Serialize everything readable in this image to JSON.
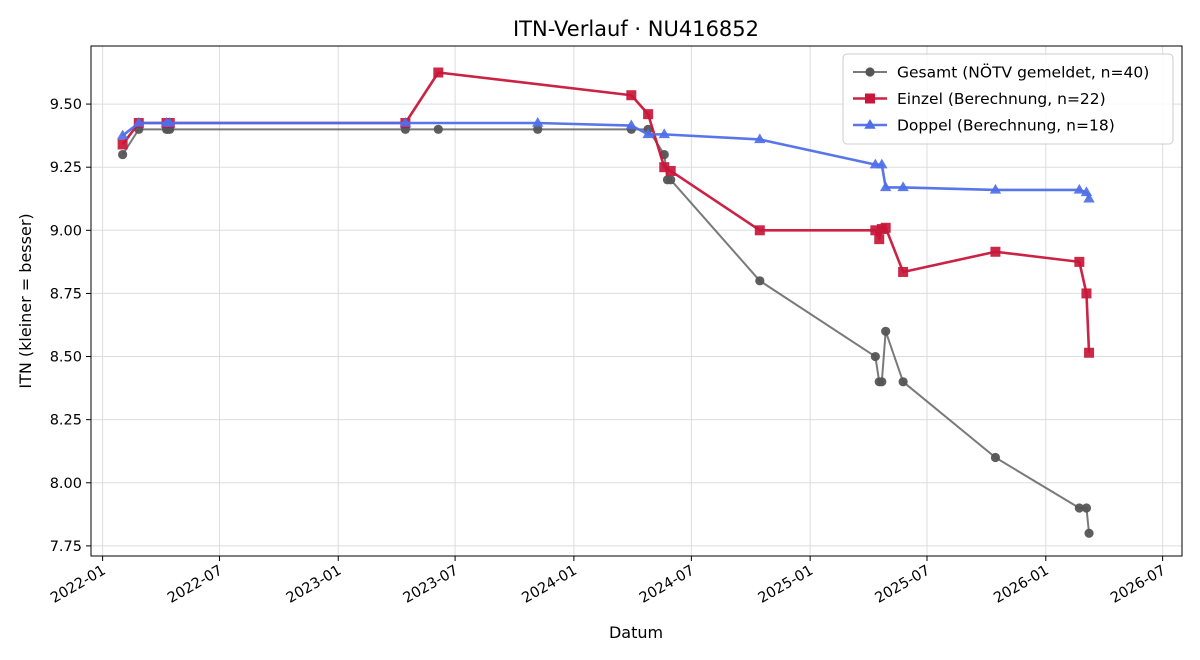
{
  "chart_data": {
    "type": "line",
    "title": "ITN-Verlauf · NU416852",
    "xlabel": "Datum",
    "ylabel": "ITN  (kleiner = besser)",
    "x_is_date": true,
    "xlim": [
      "2021-12-14",
      "2026-07-31"
    ],
    "ylim": [
      7.71,
      9.73
    ],
    "x_ticks": [
      "2022-01-01",
      "2022-07-01",
      "2023-01-01",
      "2023-07-01",
      "2024-01-01",
      "2024-07-01",
      "2025-01-01",
      "2025-07-01",
      "2026-01-01",
      "2026-07-01"
    ],
    "x_tick_labels": [
      "2022-01",
      "2022-07",
      "2023-01",
      "2023-07",
      "2024-01",
      "2024-07",
      "2025-01",
      "2025-07",
      "2026-01",
      "2026-07"
    ],
    "y_ticks": [
      7.75,
      8.0,
      8.25,
      8.5,
      8.75,
      9.0,
      9.25,
      9.5
    ],
    "y_tick_labels": [
      "7.75",
      "8.00",
      "8.25",
      "8.50",
      "8.75",
      "9.00",
      "9.25",
      "9.50"
    ],
    "grid": true,
    "legend_position": "top-right",
    "series": [
      {
        "name": "Gesamt (NÖTV gemeldet, n=40)",
        "color": "#555555",
        "marker": "circle",
        "points": [
          [
            "2022-02-01",
            9.3
          ],
          [
            "2022-02-26",
            9.4
          ],
          [
            "2022-04-10",
            9.4
          ],
          [
            "2022-04-12",
            9.4
          ],
          [
            "2022-04-15",
            9.4
          ],
          [
            "2023-04-15",
            9.4
          ],
          [
            "2023-06-05",
            9.4
          ],
          [
            "2023-11-06",
            9.4
          ],
          [
            "2024-03-30",
            9.4
          ],
          [
            "2024-04-25",
            9.4
          ],
          [
            "2024-05-20",
            9.3
          ],
          [
            "2024-05-25",
            9.2
          ],
          [
            "2024-05-30",
            9.2
          ],
          [
            "2024-10-15",
            8.8
          ],
          [
            "2025-04-12",
            8.5
          ],
          [
            "2025-04-18",
            8.4
          ],
          [
            "2025-04-22",
            8.4
          ],
          [
            "2025-04-28",
            8.6
          ],
          [
            "2025-05-25",
            8.4
          ],
          [
            "2025-10-15",
            8.1
          ],
          [
            "2026-02-22",
            7.9
          ],
          [
            "2026-03-05",
            7.9
          ],
          [
            "2026-03-09",
            7.8
          ]
        ]
      },
      {
        "name": "Einzel (Berechnung, n=22)",
        "color": "#c8173a",
        "marker": "square",
        "points": [
          [
            "2022-02-01",
            9.34
          ],
          [
            "2022-02-26",
            9.425
          ],
          [
            "2022-04-10",
            9.425
          ],
          [
            "2022-04-15",
            9.425
          ],
          [
            "2023-04-15",
            9.425
          ],
          [
            "2023-06-05",
            9.625
          ],
          [
            "2024-03-30",
            9.535
          ],
          [
            "2024-04-25",
            9.46
          ],
          [
            "2024-05-20",
            9.25
          ],
          [
            "2024-05-30",
            9.235
          ],
          [
            "2024-10-15",
            9.0
          ],
          [
            "2025-04-12",
            9.0
          ],
          [
            "2025-04-18",
            8.965
          ],
          [
            "2025-04-22",
            9.005
          ],
          [
            "2025-04-28",
            9.01
          ],
          [
            "2025-05-25",
            8.835
          ],
          [
            "2025-10-15",
            8.915
          ],
          [
            "2026-02-22",
            8.875
          ],
          [
            "2026-03-05",
            8.75
          ],
          [
            "2026-03-09",
            8.515
          ]
        ]
      },
      {
        "name": "Doppel (Berechnung, n=18)",
        "color": "#4f6fe8",
        "marker": "triangle",
        "points": [
          [
            "2022-02-01",
            9.375
          ],
          [
            "2022-02-26",
            9.425
          ],
          [
            "2022-04-10",
            9.425
          ],
          [
            "2022-04-15",
            9.425
          ],
          [
            "2023-04-15",
            9.425
          ],
          [
            "2023-11-06",
            9.425
          ],
          [
            "2024-03-30",
            9.415
          ],
          [
            "2024-04-25",
            9.38
          ],
          [
            "2024-05-20",
            9.38
          ],
          [
            "2024-10-15",
            9.36
          ],
          [
            "2025-04-12",
            9.26
          ],
          [
            "2025-04-22",
            9.26
          ],
          [
            "2025-04-28",
            9.17
          ],
          [
            "2025-05-25",
            9.17
          ],
          [
            "2025-10-15",
            9.16
          ],
          [
            "2026-02-22",
            9.16
          ],
          [
            "2026-03-05",
            9.15
          ],
          [
            "2026-03-09",
            9.125
          ]
        ]
      }
    ]
  }
}
